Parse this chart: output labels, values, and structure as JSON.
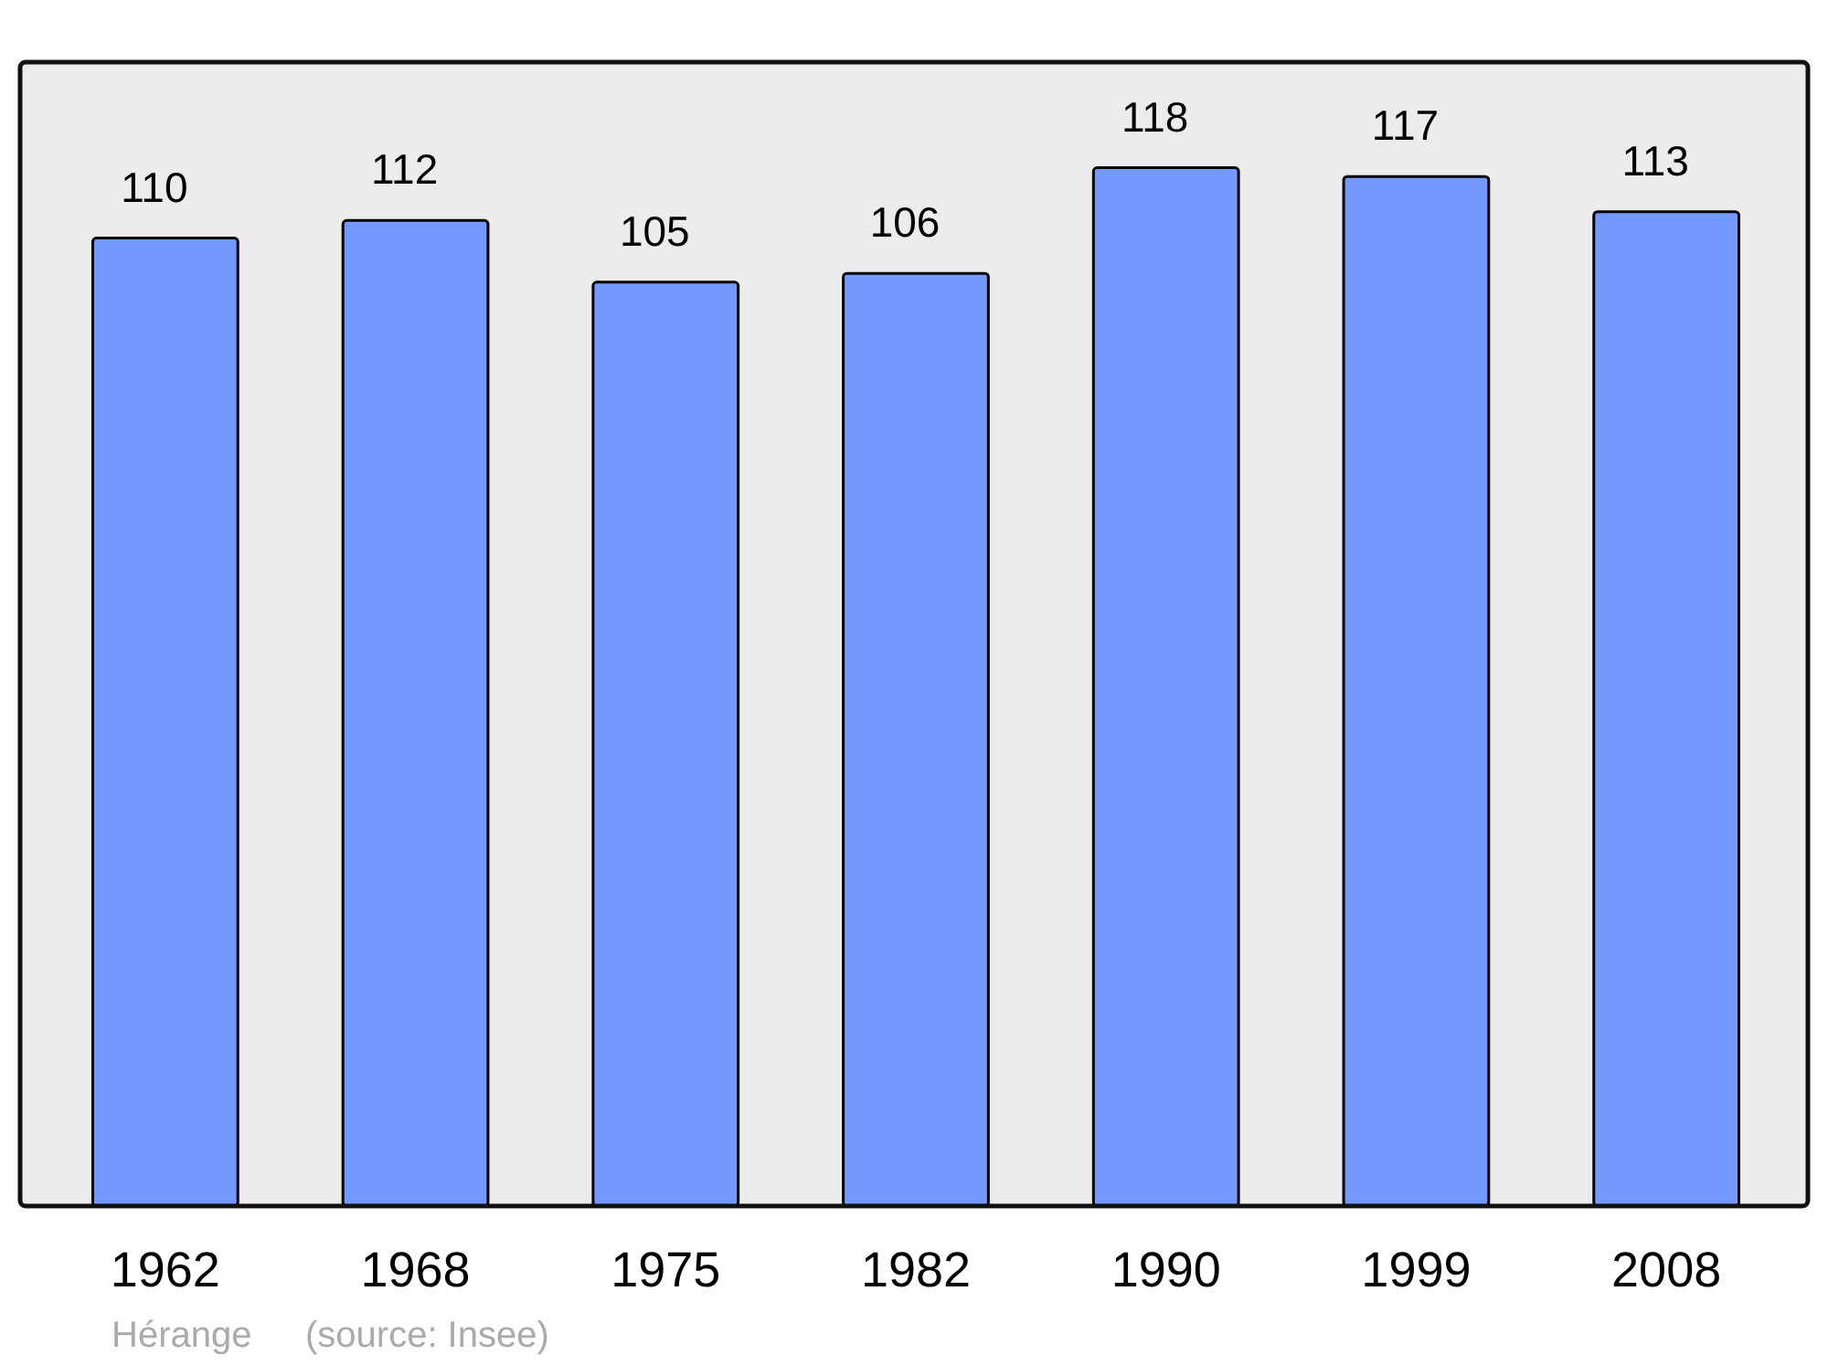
{
  "chart_data": {
    "type": "bar",
    "categories": [
      "1962",
      "1968",
      "1975",
      "1982",
      "1990",
      "1999",
      "2008"
    ],
    "values": [
      110,
      112,
      105,
      106,
      118,
      117,
      113
    ],
    "color": "#7399ff",
    "ylim": [
      0,
      130
    ],
    "data_labels": true,
    "annotations": [
      "Hérange",
      "(source: Insee)"
    ]
  }
}
